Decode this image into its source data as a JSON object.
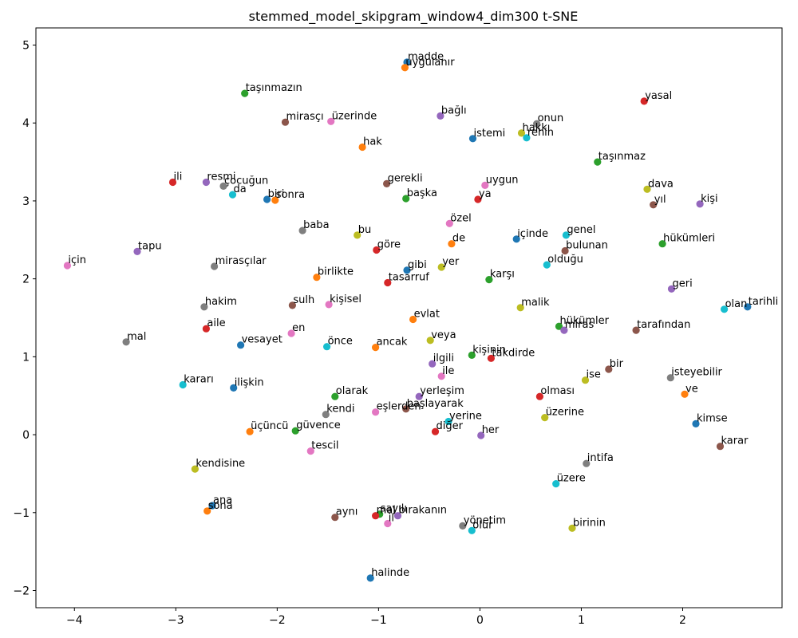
{
  "chart_data": {
    "type": "scatter",
    "title": "stemmed_model_skipgram_window4_dim300 t-SNE",
    "xlabel": "",
    "ylabel": "",
    "xlim": [
      -4.38,
      2.98
    ],
    "ylim": [
      -2.22,
      5.22
    ],
    "xticks": [
      -4,
      -3,
      -2,
      -1,
      0,
      1,
      2
    ],
    "yticks": [
      -2,
      -1,
      0,
      1,
      2,
      3,
      4,
      5
    ],
    "grid": false,
    "palette": [
      "#1f77b4",
      "#ff7f0e",
      "#2ca02c",
      "#d62728",
      "#9467bd",
      "#8c564b",
      "#e377c2",
      "#7f7f7f",
      "#bcbd22",
      "#17becf"
    ],
    "points": [
      {
        "label": "madde",
        "x": -0.72,
        "y": 4.78
      },
      {
        "label": "uygulanır",
        "x": -0.74,
        "y": 4.71
      },
      {
        "label": "taşınmazın",
        "x": -2.32,
        "y": 4.38
      },
      {
        "label": "yasal",
        "x": 1.62,
        "y": 4.28
      },
      {
        "label": "bağlı",
        "x": -0.39,
        "y": 4.09
      },
      {
        "label": "mirasçı",
        "x": -1.92,
        "y": 4.01
      },
      {
        "label": "üzerinde",
        "x": -1.47,
        "y": 4.02
      },
      {
        "label": "onun",
        "x": 0.56,
        "y": 3.99
      },
      {
        "label": "hakkı",
        "x": 0.41,
        "y": 3.87
      },
      {
        "label": "rehin",
        "x": 0.46,
        "y": 3.81
      },
      {
        "label": "istemi",
        "x": -0.07,
        "y": 3.8
      },
      {
        "label": "hak",
        "x": -1.16,
        "y": 3.69
      },
      {
        "label": "taşınmaz",
        "x": 1.16,
        "y": 3.5
      },
      {
        "label": "ili",
        "x": -3.03,
        "y": 3.24
      },
      {
        "label": "resmi",
        "x": -2.7,
        "y": 3.24
      },
      {
        "label": "gerekli",
        "x": -0.92,
        "y": 3.22
      },
      {
        "label": "uygun",
        "x": 0.05,
        "y": 3.2
      },
      {
        "label": "çocuğun",
        "x": -2.53,
        "y": 3.19
      },
      {
        "label": "dava",
        "x": 1.65,
        "y": 3.15
      },
      {
        "label": "da",
        "x": -2.44,
        "y": 3.08
      },
      {
        "label": "biri",
        "x": -2.1,
        "y": 3.02
      },
      {
        "label": "sonra",
        "x": -2.02,
        "y": 3.01
      },
      {
        "label": "başka",
        "x": -0.73,
        "y": 3.03
      },
      {
        "label": "ya",
        "x": -0.02,
        "y": 3.02
      },
      {
        "label": "kişi",
        "x": 2.17,
        "y": 2.96
      },
      {
        "label": "yıl",
        "x": 1.71,
        "y": 2.95
      },
      {
        "label": "özel",
        "x": -0.3,
        "y": 2.71
      },
      {
        "label": "baba",
        "x": -1.75,
        "y": 2.62
      },
      {
        "label": "bu",
        "x": -1.21,
        "y": 2.56
      },
      {
        "label": "genel",
        "x": 0.85,
        "y": 2.56
      },
      {
        "label": "içinde",
        "x": 0.36,
        "y": 2.51
      },
      {
        "label": "de",
        "x": -0.28,
        "y": 2.45
      },
      {
        "label": "hükümleri",
        "x": 1.8,
        "y": 2.45
      },
      {
        "label": "göre",
        "x": -1.02,
        "y": 2.37
      },
      {
        "label": "tapu",
        "x": -3.38,
        "y": 2.35
      },
      {
        "label": "bulunan",
        "x": 0.84,
        "y": 2.36
      },
      {
        "label": "için",
        "x": -4.07,
        "y": 2.17
      },
      {
        "label": "mirasçılar",
        "x": -2.62,
        "y": 2.16
      },
      {
        "label": "yer",
        "x": -0.38,
        "y": 2.15
      },
      {
        "label": "olduğu",
        "x": 0.66,
        "y": 2.18
      },
      {
        "label": "gibi",
        "x": -0.72,
        "y": 2.11
      },
      {
        "label": "birlikte",
        "x": -1.61,
        "y": 2.02
      },
      {
        "label": "karşı",
        "x": 0.09,
        "y": 1.99
      },
      {
        "label": "tasarruf",
        "x": -0.91,
        "y": 1.95
      },
      {
        "label": "geri",
        "x": 1.89,
        "y": 1.87
      },
      {
        "label": "sulh",
        "x": -1.85,
        "y": 1.66
      },
      {
        "label": "kişisel",
        "x": -1.49,
        "y": 1.67
      },
      {
        "label": "hakim",
        "x": -2.72,
        "y": 1.64
      },
      {
        "label": "malik",
        "x": 0.4,
        "y": 1.63
      },
      {
        "label": "olan",
        "x": 2.41,
        "y": 1.61
      },
      {
        "label": "tarihli",
        "x": 2.64,
        "y": 1.64
      },
      {
        "label": "evlat",
        "x": -0.66,
        "y": 1.48
      },
      {
        "label": "hükümler",
        "x": 0.78,
        "y": 1.39
      },
      {
        "label": "aile",
        "x": -2.7,
        "y": 1.36
      },
      {
        "label": "miras",
        "x": 0.83,
        "y": 1.34
      },
      {
        "label": "tarafından",
        "x": 1.54,
        "y": 1.34
      },
      {
        "label": "en",
        "x": -1.86,
        "y": 1.3
      },
      {
        "label": "mal",
        "x": -3.49,
        "y": 1.19
      },
      {
        "label": "veya",
        "x": -0.49,
        "y": 1.21
      },
      {
        "label": "önce",
        "x": -1.51,
        "y": 1.13
      },
      {
        "label": "vesayet",
        "x": -2.36,
        "y": 1.15
      },
      {
        "label": "ancak",
        "x": -1.03,
        "y": 1.12
      },
      {
        "label": "kişinin",
        "x": -0.08,
        "y": 1.02
      },
      {
        "label": "takdirde",
        "x": 0.11,
        "y": 0.98
      },
      {
        "label": "ilgili",
        "x": -0.47,
        "y": 0.91
      },
      {
        "label": "bir",
        "x": 1.27,
        "y": 0.84
      },
      {
        "label": "ile",
        "x": -0.38,
        "y": 0.75
      },
      {
        "label": "isteyebilir",
        "x": 1.88,
        "y": 0.73
      },
      {
        "label": "ise",
        "x": 1.04,
        "y": 0.7
      },
      {
        "label": "kararı",
        "x": -2.93,
        "y": 0.64
      },
      {
        "label": "ilişkin",
        "x": -2.43,
        "y": 0.6
      },
      {
        "label": "ve",
        "x": 2.02,
        "y": 0.52
      },
      {
        "label": "olarak",
        "x": -1.43,
        "y": 0.49
      },
      {
        "label": "olması",
        "x": 0.59,
        "y": 0.49
      },
      {
        "label": "yerleşim",
        "x": -0.6,
        "y": 0.49
      },
      {
        "label": "başlayarak",
        "x": -0.73,
        "y": 0.33
      },
      {
        "label": "eşlerden",
        "x": -1.03,
        "y": 0.29
      },
      {
        "label": "kendi",
        "x": -1.52,
        "y": 0.26
      },
      {
        "label": "üzerine",
        "x": 0.64,
        "y": 0.22
      },
      {
        "label": "yerine",
        "x": -0.31,
        "y": 0.17
      },
      {
        "label": "kimse",
        "x": 2.13,
        "y": 0.14
      },
      {
        "label": "üçüncü",
        "x": -2.27,
        "y": 0.04
      },
      {
        "label": "güvence",
        "x": -1.82,
        "y": 0.05
      },
      {
        "label": "diğer",
        "x": -0.44,
        "y": 0.04
      },
      {
        "label": "her",
        "x": 0.01,
        "y": -0.01
      },
      {
        "label": "karar",
        "x": 2.37,
        "y": -0.15
      },
      {
        "label": "tescil",
        "x": -1.67,
        "y": -0.21
      },
      {
        "label": "intifa",
        "x": 1.05,
        "y": -0.37
      },
      {
        "label": "kendisine",
        "x": -2.81,
        "y": -0.44
      },
      {
        "label": "üzere",
        "x": 0.75,
        "y": -0.63
      },
      {
        "label": "ana",
        "x": -2.64,
        "y": -0.91
      },
      {
        "label": "sona",
        "x": -2.69,
        "y": -0.98
      },
      {
        "label": "sayılı",
        "x": -0.99,
        "y": -1.02
      },
      {
        "label": "mal",
        "x": -1.03,
        "y": -1.04
      },
      {
        "label": "bırakanın",
        "x": -0.81,
        "y": -1.04
      },
      {
        "label": "aynı",
        "x": -1.43,
        "y": -1.06
      },
      {
        "label": "il",
        "x": -0.91,
        "y": -1.14
      },
      {
        "label": "yönetim",
        "x": -0.17,
        "y": -1.17
      },
      {
        "label": "birinin",
        "x": 0.91,
        "y": -1.2
      },
      {
        "label": "olur",
        "x": -0.08,
        "y": -1.23
      },
      {
        "label": "halinde",
        "x": -1.08,
        "y": -1.84
      }
    ]
  }
}
